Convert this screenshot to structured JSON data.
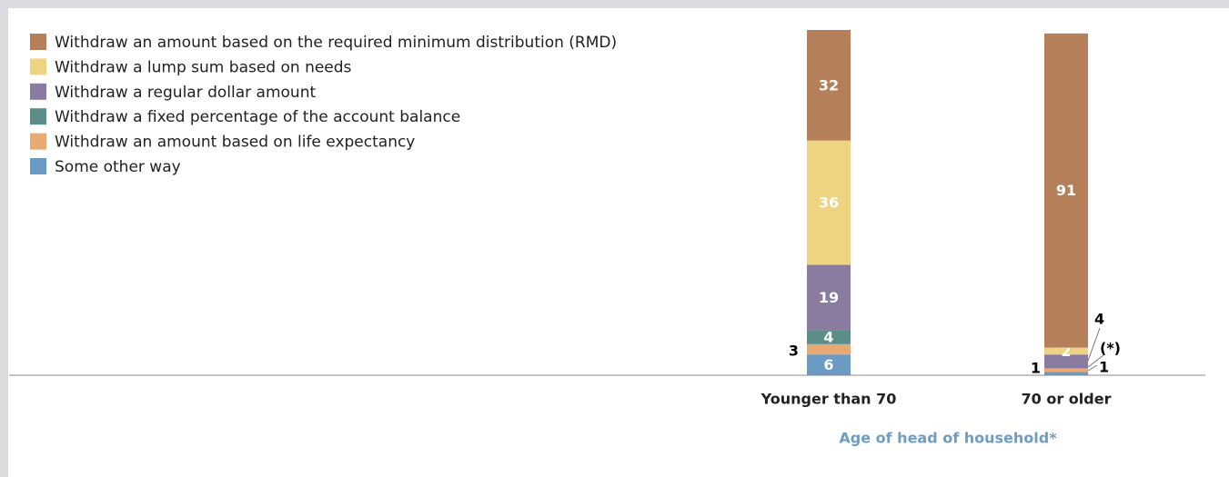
{
  "chart_data": {
    "type": "stacked_bar",
    "categories": [
      "Younger than 70",
      "70 or older"
    ],
    "x_axis_label": "Age of head of household*",
    "ylim": [
      0,
      100
    ],
    "legend": "top-left",
    "series": [
      {
        "name": "Some other way",
        "color": "#6b9bc4",
        "values": [
          6,
          1
        ]
      },
      {
        "name": "Withdraw an amount based on life expectancy",
        "color": "#e9a972",
        "values": [
          3,
          1
        ]
      },
      {
        "name": "Withdraw a fixed percentage of the account balance",
        "color": "#5b8e88",
        "values": [
          4,
          0
        ],
        "value_labels": [
          "4",
          "(*)"
        ]
      },
      {
        "name": "Withdraw a regular dollar amount",
        "color": "#8a7ba1",
        "values": [
          19,
          4
        ]
      },
      {
        "name": "Withdraw a lump sum based on needs",
        "color": "#eed481",
        "values": [
          36,
          2
        ]
      },
      {
        "name": "Withdraw an amount based on the required minimum distribution (RMD)",
        "color": "#b57f5a",
        "values": [
          32,
          91
        ]
      }
    ]
  }
}
